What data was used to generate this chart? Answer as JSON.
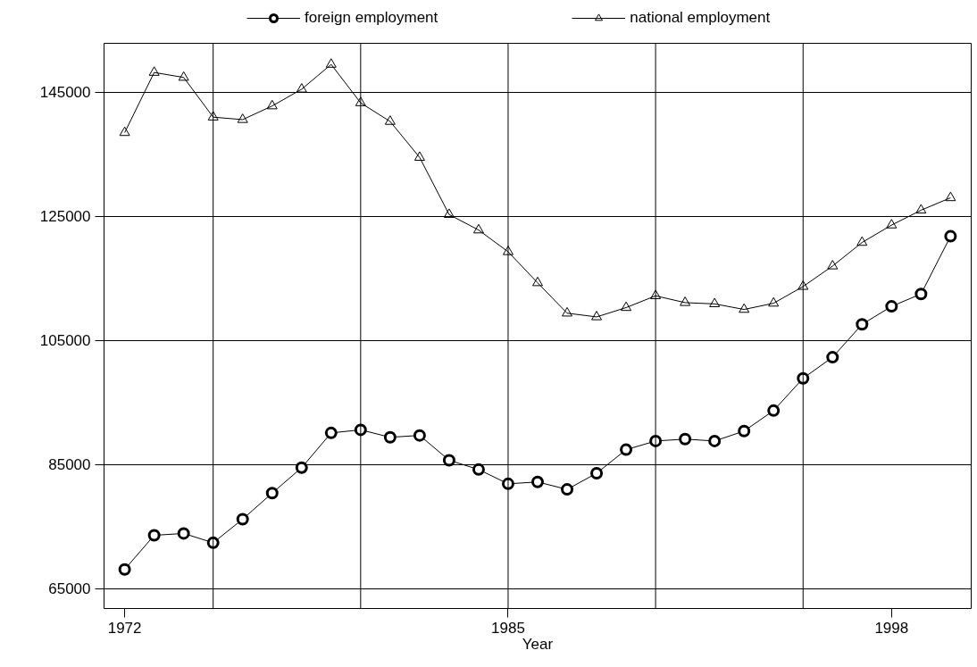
{
  "chart_data": {
    "type": "line",
    "xlabel": "Year",
    "x": [
      1972,
      1973,
      1974,
      1975,
      1976,
      1977,
      1978,
      1979,
      1980,
      1981,
      1982,
      1983,
      1984,
      1985,
      1986,
      1987,
      1988,
      1989,
      1990,
      1991,
      1992,
      1993,
      1994,
      1995,
      1996,
      1997,
      1998,
      1999,
      2000
    ],
    "series": [
      {
        "name": "foreign employment",
        "color": "#000000",
        "marker": "circle",
        "values": [
          68100,
          73600,
          73900,
          72400,
          76200,
          80400,
          84500,
          90100,
          90600,
          89400,
          89700,
          85700,
          84200,
          81900,
          82200,
          81000,
          83600,
          87400,
          88800,
          89100,
          88800,
          90400,
          93700,
          98900,
          102300,
          107600,
          110500,
          112500,
          121800
        ]
      },
      {
        "name": "national employment",
        "color": "#000000",
        "marker": "triangle",
        "values": [
          138500,
          148200,
          147400,
          141000,
          140600,
          142800,
          145500,
          149500,
          143300,
          140300,
          134500,
          125300,
          122800,
          119300,
          114300,
          109400,
          108800,
          110300,
          112200,
          111100,
          110900,
          110000,
          111000,
          113700,
          117000,
          120800,
          123600,
          126000,
          128000
        ]
      }
    ],
    "xlim": [
      1971.3,
      2000.7
    ],
    "xticks": [
      1972,
      1985,
      1998
    ],
    "ylim": [
      61800,
      152900
    ],
    "yticks": [
      65000,
      85000,
      105000,
      125000,
      145000
    ],
    "grid": "y",
    "legend": "top",
    "line_style": "solid",
    "ref_lines": [
      {
        "axis": "x",
        "value": 1975
      },
      {
        "axis": "x",
        "value": 1980
      },
      {
        "axis": "x",
        "value": 1985
      },
      {
        "axis": "x",
        "value": 1990
      },
      {
        "axis": "x",
        "value": 1995
      }
    ]
  }
}
